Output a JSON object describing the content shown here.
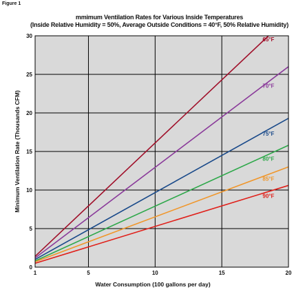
{
  "figure_label": "Figure 1",
  "chart_data": {
    "type": "line",
    "title": "mmimum Ventilation Rates for Various Inside Temperatures",
    "subtitle": "(Inside Relative Humidity = 50%, Average Outside Conditions =  40°F, 50% Relative Humidity)",
    "xlabel": "Water Consumption (100 gallons per day)",
    "ylabel": "Minimum Ventilation Rate (Thousands CFM)",
    "xlim": [
      1,
      20
    ],
    "ylim": [
      0,
      30
    ],
    "x_ticks": [
      1,
      5,
      10,
      15,
      20
    ],
    "y_ticks": [
      0,
      5,
      10,
      15,
      20,
      25,
      30
    ],
    "grid": true,
    "series": [
      {
        "name": "65°F",
        "color": "#a0102a",
        "x": [
          1,
          18.5
        ],
        "y": [
          1.4,
          30
        ]
      },
      {
        "name": "70°F",
        "color": "#8a3a9a",
        "x": [
          1,
          20
        ],
        "y": [
          1.2,
          26
        ]
      },
      {
        "name": "75°F",
        "color": "#1a4a8a",
        "x": [
          1,
          20
        ],
        "y": [
          1.0,
          19.3
        ]
      },
      {
        "name": "80°F",
        "color": "#2ea84a",
        "x": [
          1,
          20
        ],
        "y": [
          0.8,
          15.8
        ]
      },
      {
        "name": "85°F",
        "color": "#f0962a",
        "x": [
          1,
          20
        ],
        "y": [
          0.7,
          13.0
        ]
      },
      {
        "name": "90°F",
        "color": "#e0201a",
        "x": [
          1,
          20
        ],
        "y": [
          0.5,
          10.6
        ]
      }
    ]
  }
}
